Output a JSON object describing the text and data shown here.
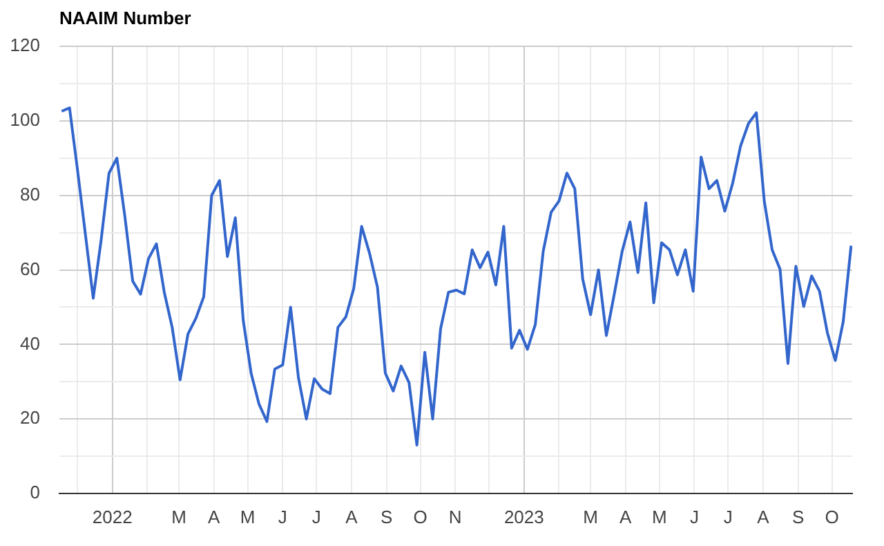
{
  "chart_data": {
    "type": "line",
    "title": "NAAIM Number",
    "x": [
      "2021-11-17",
      "2021-11-24",
      "2021-12-01",
      "2021-12-15",
      "2021-12-22",
      "2021-12-29",
      "2022-01-05",
      "2022-01-12",
      "2022-01-19",
      "2022-01-26",
      "2022-02-02",
      "2022-02-09",
      "2022-02-16",
      "2022-02-23",
      "2022-03-02",
      "2022-03-09",
      "2022-03-16",
      "2022-03-23",
      "2022-03-30",
      "2022-04-06",
      "2022-04-13",
      "2022-04-20",
      "2022-04-27",
      "2022-05-04",
      "2022-05-11",
      "2022-05-18",
      "2022-05-25",
      "2022-06-01",
      "2022-06-08",
      "2022-06-15",
      "2022-06-22",
      "2022-06-29",
      "2022-07-06",
      "2022-07-13",
      "2022-07-20",
      "2022-07-27",
      "2022-08-03",
      "2022-08-10",
      "2022-08-17",
      "2022-08-24",
      "2022-08-31",
      "2022-09-07",
      "2022-09-14",
      "2022-09-21",
      "2022-09-28",
      "2022-10-05",
      "2022-10-12",
      "2022-10-19",
      "2022-10-26",
      "2022-11-02",
      "2022-11-09",
      "2022-11-16",
      "2022-11-23",
      "2022-11-30",
      "2022-12-07",
      "2022-12-14",
      "2022-12-21",
      "2022-12-28",
      "2023-01-04",
      "2023-01-11",
      "2023-01-18",
      "2023-01-25",
      "2023-02-01",
      "2023-02-08",
      "2023-02-15",
      "2023-02-22",
      "2023-03-01",
      "2023-03-08",
      "2023-03-15",
      "2023-03-22",
      "2023-03-29",
      "2023-04-05",
      "2023-04-12",
      "2023-04-19",
      "2023-04-26",
      "2023-05-03",
      "2023-05-10",
      "2023-05-17",
      "2023-05-24",
      "2023-05-31",
      "2023-06-07",
      "2023-06-14",
      "2023-06-21",
      "2023-06-28",
      "2023-07-05",
      "2023-07-12",
      "2023-07-19",
      "2023-07-26",
      "2023-08-02",
      "2023-08-09",
      "2023-08-16",
      "2023-08-23",
      "2023-08-30",
      "2023-09-06",
      "2023-09-13",
      "2023-09-20",
      "2023-09-27",
      "2023-10-04",
      "2023-10-11",
      "2023-10-18"
    ],
    "series": [
      {
        "color": "#3366cc",
        "values": [
          102.6,
          103.5,
          87,
          52.4,
          68,
          86,
          90,
          74.5,
          57,
          53.5,
          63,
          67,
          54,
          44.6,
          30.5,
          42.8,
          47,
          52.8,
          80,
          84,
          63.6,
          74,
          46.5,
          32.3,
          24,
          19.3,
          33.4,
          34.5,
          50,
          31,
          20,
          30.8,
          28,
          26.8,
          44.6,
          47.4,
          55,
          71.7,
          64.5,
          55.4,
          32.3,
          27.5,
          34.2,
          29.8,
          13,
          37.9,
          20,
          44.2,
          54,
          54.6,
          53.6,
          65.4,
          60.6,
          64.8,
          56,
          71.7,
          39,
          43.8,
          38.7,
          45.4,
          65,
          75.5,
          78.5,
          86,
          81.8,
          57.6,
          48,
          60,
          42.4,
          53.5,
          65,
          72.9,
          59.3,
          78,
          51.2,
          67.3,
          65.4,
          58.7,
          65.4,
          54.3,
          90.3,
          81.8,
          84,
          75.8,
          83.3,
          93.3,
          99.3,
          102.2,
          78.5,
          65.4,
          60.2,
          34.9,
          61,
          50.2,
          58.4,
          54.3,
          43.1,
          35.7,
          46.1,
          66.5
        ]
      }
    ],
    "xlim": [
      "2021-11-15",
      "2023-10-19"
    ],
    "xticks": [
      {
        "value": "2021-12-01",
        "label": null
      },
      {
        "value": "2022-01-01",
        "label": "2022"
      },
      {
        "value": "2022-02-01",
        "label": null
      },
      {
        "value": "2022-03-01",
        "label": "M"
      },
      {
        "value": "2022-04-01",
        "label": "A"
      },
      {
        "value": "2022-05-01",
        "label": "M"
      },
      {
        "value": "2022-06-01",
        "label": "J"
      },
      {
        "value": "2022-07-01",
        "label": "J"
      },
      {
        "value": "2022-08-01",
        "label": "A"
      },
      {
        "value": "2022-09-01",
        "label": "S"
      },
      {
        "value": "2022-10-01",
        "label": "O"
      },
      {
        "value": "2022-11-01",
        "label": "N"
      },
      {
        "value": "2022-12-01",
        "label": null
      },
      {
        "value": "2023-01-01",
        "label": "2023"
      },
      {
        "value": "2023-02-01",
        "label": null
      },
      {
        "value": "2023-03-01",
        "label": "M"
      },
      {
        "value": "2023-04-01",
        "label": "A"
      },
      {
        "value": "2023-05-01",
        "label": "M"
      },
      {
        "value": "2023-06-01",
        "label": "J"
      },
      {
        "value": "2023-07-01",
        "label": "J"
      },
      {
        "value": "2023-08-01",
        "label": "A"
      },
      {
        "value": "2023-09-01",
        "label": "S"
      },
      {
        "value": "2023-10-01",
        "label": "O"
      }
    ],
    "ylim": [
      0,
      120
    ],
    "yticks": [
      0,
      {
        "value": 10,
        "label": null
      },
      20,
      {
        "value": 30,
        "label": null
      },
      40,
      {
        "value": 50,
        "label": null
      },
      60,
      {
        "value": 70,
        "label": null
      },
      80,
      {
        "value": 90,
        "label": null
      },
      100,
      {
        "value": 110,
        "label": null
      },
      120
    ],
    "grid": true,
    "legend": false,
    "marker": "none",
    "line_style": "solid"
  }
}
